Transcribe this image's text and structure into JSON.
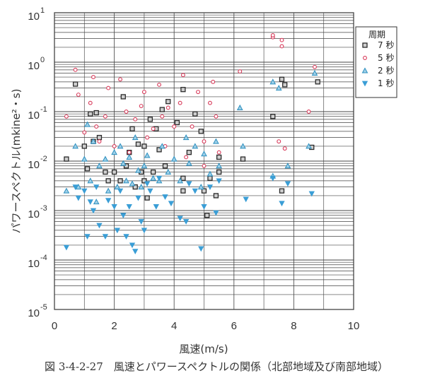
{
  "chart_data": {
    "type": "scatter",
    "title": "",
    "caption": "図 3-4-2-27　風速とパワースペクトルの関係（北部地域及び南部地域）",
    "xlabel": "風速(m/s)",
    "ylabel": "パワースペクトル(mkine²・s)",
    "xlim": [
      0,
      10
    ],
    "ylim": [
      1e-05,
      10
    ],
    "yscale": "log",
    "grid": true,
    "x_ticks": [
      "0",
      "2",
      "4",
      "6",
      "8",
      "10"
    ],
    "y_ticks": [
      {
        "base": "10",
        "exp": "1",
        "value": 10
      },
      {
        "base": "10",
        "exp": "0",
        "value": 1
      },
      {
        "base": "10",
        "exp": "-1",
        "value": 0.1
      },
      {
        "base": "10",
        "exp": "-2",
        "value": 0.01
      },
      {
        "base": "10",
        "exp": "-3",
        "value": 0.001
      },
      {
        "base": "10",
        "exp": "-4",
        "value": 0.0001
      },
      {
        "base": "10",
        "exp": "-5",
        "value": 1e-05
      }
    ],
    "legend": {
      "title": "周期",
      "position": "top-right"
    },
    "series": [
      {
        "name": "7 秒",
        "marker": "square",
        "color": "#2a2a2a",
        "points": [
          [
            0.4,
            0.011
          ],
          [
            0.7,
            0.36
          ],
          [
            1.0,
            0.02
          ],
          [
            1.1,
            0.007
          ],
          [
            1.2,
            0.09
          ],
          [
            1.3,
            0.025
          ],
          [
            1.4,
            0.095
          ],
          [
            1.5,
            0.03
          ],
          [
            1.7,
            0.006
          ],
          [
            1.8,
            0.004
          ],
          [
            2.0,
            0.006
          ],
          [
            2.2,
            0.004
          ],
          [
            2.3,
            0.2
          ],
          [
            2.4,
            0.008
          ],
          [
            2.5,
            0.015
          ],
          [
            2.6,
            0.045
          ],
          [
            2.7,
            0.003
          ],
          [
            2.8,
            0.022
          ],
          [
            2.9,
            0.006
          ],
          [
            3.0,
            0.004
          ],
          [
            3.0,
            0.02
          ],
          [
            3.1,
            0.0018
          ],
          [
            3.2,
            0.07
          ],
          [
            3.3,
            0.006
          ],
          [
            3.4,
            0.045
          ],
          [
            3.5,
            0.017
          ],
          [
            3.6,
            0.11
          ],
          [
            3.7,
            0.008
          ],
          [
            3.8,
            0.16
          ],
          [
            4.1,
            0.06
          ],
          [
            4.3,
            0.28
          ],
          [
            4.3,
            0.0045
          ],
          [
            4.3,
            0.0025
          ],
          [
            4.5,
            0.015
          ],
          [
            4.7,
            0.09
          ],
          [
            4.9,
            0.04
          ],
          [
            5.0,
            0.0025
          ],
          [
            5.1,
            0.0008
          ],
          [
            5.2,
            0.0045
          ],
          [
            5.4,
            0.002
          ],
          [
            5.5,
            0.012
          ],
          [
            5.5,
            0.006
          ],
          [
            6.3,
            0.011
          ],
          [
            7.3,
            0.08
          ],
          [
            7.6,
            0.0025
          ],
          [
            7.6,
            0.45
          ],
          [
            7.7,
            0.35
          ],
          [
            8.6,
            0.019
          ],
          [
            8.8,
            0.4
          ]
        ]
      },
      {
        "name": "5 秒",
        "marker": "circle",
        "color": "#d83a5a",
        "points": [
          [
            0.4,
            0.08
          ],
          [
            0.7,
            0.7
          ],
          [
            0.8,
            0.22
          ],
          [
            1.0,
            0.038
          ],
          [
            1.2,
            0.15
          ],
          [
            1.3,
            0.5
          ],
          [
            1.4,
            0.05
          ],
          [
            1.5,
            0.025
          ],
          [
            1.7,
            0.08
          ],
          [
            1.8,
            0.3
          ],
          [
            2.0,
            0.02
          ],
          [
            2.2,
            0.45
          ],
          [
            2.4,
            0.1
          ],
          [
            2.5,
            0.015
          ],
          [
            2.7,
            0.07
          ],
          [
            2.9,
            0.13
          ],
          [
            3.0,
            0.25
          ],
          [
            3.1,
            0.03
          ],
          [
            3.3,
            0.045
          ],
          [
            3.5,
            0.35
          ],
          [
            3.6,
            0.08
          ],
          [
            3.7,
            0.02
          ],
          [
            3.8,
            0.12
          ],
          [
            4.0,
            0.05
          ],
          [
            4.2,
            0.15
          ],
          [
            4.3,
            0.55
          ],
          [
            4.4,
            0.012
          ],
          [
            4.6,
            0.05
          ],
          [
            4.8,
            0.25
          ],
          [
            5.0,
            0.025
          ],
          [
            5.0,
            0.008
          ],
          [
            5.2,
            0.15
          ],
          [
            5.3,
            0.4
          ],
          [
            5.4,
            0.08
          ],
          [
            5.5,
            0.015
          ],
          [
            6.2,
            0.65
          ],
          [
            7.3,
            3.2
          ],
          [
            7.3,
            3.5
          ],
          [
            7.5,
            0.025
          ],
          [
            7.6,
            2.1
          ],
          [
            7.6,
            2.8
          ],
          [
            7.7,
            0.018
          ],
          [
            8.5,
            0.1
          ],
          [
            8.7,
            0.8
          ]
        ]
      },
      {
        "name": "2 秒",
        "marker": "triangle-up",
        "color": "#2c8fbf",
        "points": [
          [
            0.4,
            0.0025
          ],
          [
            0.7,
            0.02
          ],
          [
            0.8,
            0.003
          ],
          [
            1.0,
            0.011
          ],
          [
            1.1,
            0.055
          ],
          [
            1.2,
            0.004
          ],
          [
            1.3,
            0.025
          ],
          [
            1.4,
            0.0015
          ],
          [
            1.5,
            0.008
          ],
          [
            1.7,
            0.011
          ],
          [
            1.8,
            0.0025
          ],
          [
            2.0,
            0.015
          ],
          [
            2.1,
            0.003
          ],
          [
            2.2,
            0.02
          ],
          [
            2.3,
            0.009
          ],
          [
            2.4,
            0.004
          ],
          [
            2.5,
            0.012
          ],
          [
            2.6,
            0.0035
          ],
          [
            2.7,
            0.03
          ],
          [
            2.8,
            0.0065
          ],
          [
            2.9,
            0.003
          ],
          [
            3.0,
            0.008
          ],
          [
            3.1,
            0.013
          ],
          [
            3.3,
            0.0045
          ],
          [
            3.5,
            0.004
          ],
          [
            3.6,
            0.02
          ],
          [
            3.8,
            0.006
          ],
          [
            4.0,
            0.011
          ],
          [
            4.2,
            0.004
          ],
          [
            4.4,
            0.03
          ],
          [
            4.5,
            0.009
          ],
          [
            4.7,
            0.02
          ],
          [
            4.9,
            0.003
          ],
          [
            5.0,
            0.014
          ],
          [
            5.2,
            0.0055
          ],
          [
            5.4,
            0.025
          ],
          [
            5.5,
            0.008
          ],
          [
            6.2,
            0.12
          ],
          [
            6.3,
            0.02
          ],
          [
            7.3,
            0.4
          ],
          [
            7.3,
            0.005
          ],
          [
            7.5,
            0.3
          ],
          [
            7.8,
            0.008
          ],
          [
            8.5,
            0.02
          ],
          [
            8.7,
            0.6
          ]
        ]
      },
      {
        "name": "1 秒",
        "marker": "triangle-down",
        "color": "#3a9ed6",
        "points": [
          [
            0.4,
            0.00018
          ],
          [
            0.7,
            0.003
          ],
          [
            0.8,
            0.0018
          ],
          [
            1.0,
            0.0025
          ],
          [
            1.1,
            0.0003
          ],
          [
            1.2,
            0.0015
          ],
          [
            1.3,
            0.001
          ],
          [
            1.4,
            0.003
          ],
          [
            1.5,
            0.0005
          ],
          [
            1.7,
            0.0003
          ],
          [
            1.8,
            0.0016
          ],
          [
            2.0,
            0.0012
          ],
          [
            2.1,
            0.0004
          ],
          [
            2.2,
            0.0025
          ],
          [
            2.3,
            0.0008
          ],
          [
            2.4,
            0.0003
          ],
          [
            2.5,
            0.0012
          ],
          [
            2.6,
            0.0002
          ],
          [
            2.7,
            0.00015
          ],
          [
            2.8,
            0.0018
          ],
          [
            2.9,
            0.0006
          ],
          [
            3.0,
            0.0004
          ],
          [
            3.1,
            0.0035
          ],
          [
            3.2,
            0.0025
          ],
          [
            3.4,
            0.0012
          ],
          [
            3.5,
            0.0045
          ],
          [
            3.7,
            0.0019
          ],
          [
            3.9,
            0.0014
          ],
          [
            4.2,
            0.0007
          ],
          [
            4.4,
            0.0006
          ],
          [
            4.5,
            0.0035
          ],
          [
            4.7,
            0.0025
          ],
          [
            4.9,
            0.00017
          ],
          [
            5.0,
            0.0012
          ],
          [
            5.2,
            0.003
          ],
          [
            5.4,
            0.0009
          ],
          [
            5.5,
            0.004
          ],
          [
            6.4,
            0.0017
          ],
          [
            7.3,
            0.0045
          ],
          [
            7.6,
            0.0014
          ],
          [
            7.8,
            0.0035
          ],
          [
            8.6,
            0.0022
          ]
        ]
      }
    ]
  }
}
